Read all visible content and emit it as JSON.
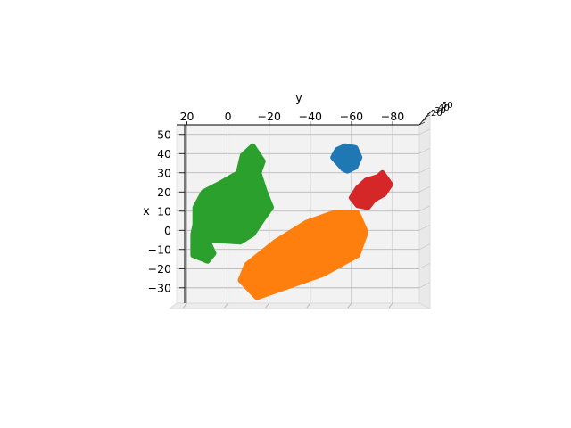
{
  "chart_data": {
    "type": "scatter",
    "projection": "3d",
    "title": "",
    "xlabel": "x",
    "ylabel": "y",
    "zlabel": "",
    "xlim": [
      -38,
      55
    ],
    "ylim": [
      25,
      -93
    ],
    "x_ticks": [
      "50",
      "40",
      "30",
      "20",
      "10",
      "0",
      "−10",
      "−20",
      "−30"
    ],
    "x_tick_values": [
      50,
      40,
      30,
      20,
      10,
      0,
      -10,
      -20,
      -30
    ],
    "y_ticks": [
      "20",
      "0",
      "−20",
      "−40",
      "−60",
      "−80"
    ],
    "y_tick_values": [
      20,
      0,
      -20,
      -40,
      -60,
      -80
    ],
    "z_ticks_visible": [
      "20",
      "30",
      "40",
      "50"
    ],
    "grid": true,
    "legend": "none",
    "colors": [
      "#1f77b4",
      "#ff7f0e",
      "#2ca02c",
      "#d62728"
    ],
    "series": [
      {
        "color": "#1f77b4",
        "points": [
          [
            32,
            -56
          ],
          [
            38,
            -51
          ],
          [
            42,
            -53
          ],
          [
            44,
            -57
          ],
          [
            43,
            -62
          ],
          [
            38,
            -64
          ],
          [
            33,
            -62
          ],
          [
            31,
            -58
          ]
        ]
      },
      {
        "color": "#d62728",
        "points": [
          [
            28,
            -73
          ],
          [
            30,
            -75
          ],
          [
            24,
            -79
          ],
          [
            19,
            -76
          ],
          [
            16,
            -71
          ],
          [
            12,
            -68
          ],
          [
            13,
            -63
          ],
          [
            17,
            -60
          ],
          [
            22,
            -63
          ],
          [
            26,
            -67
          ]
        ]
      },
      {
        "color": "#2ca02c",
        "points": [
          [
            44,
            -12
          ],
          [
            36,
            -17
          ],
          [
            30,
            -15
          ],
          [
            20,
            -18
          ],
          [
            12,
            -21
          ],
          [
            6,
            -17
          ],
          [
            -2,
            -12
          ],
          [
            -6,
            -6
          ],
          [
            -5,
            10
          ],
          [
            -12,
            7
          ],
          [
            -16,
            10
          ],
          [
            -13,
            17
          ],
          [
            -2,
            17
          ],
          [
            3,
            16
          ],
          [
            12,
            16
          ],
          [
            20,
            12
          ],
          [
            25,
            3
          ],
          [
            30,
            -5
          ],
          [
            39,
            -7
          ]
        ]
      },
      {
        "color": "#ff7f0e",
        "points": [
          [
            -35,
            -14
          ],
          [
            -23,
            -46
          ],
          [
            -13,
            -63
          ],
          [
            -1,
            -67
          ],
          [
            9,
            -63
          ],
          [
            9,
            -51
          ],
          [
            4,
            -38
          ],
          [
            -6,
            -23
          ],
          [
            -18,
            -9
          ],
          [
            -26,
            -6
          ]
        ]
      }
    ]
  }
}
